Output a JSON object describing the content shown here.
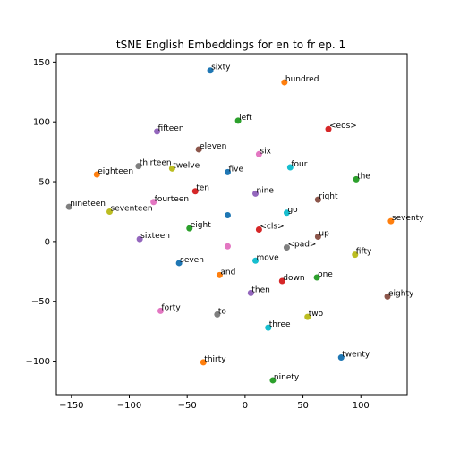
{
  "chart_data": {
    "type": "scatter",
    "title": "tSNE English Embeddings for en to fr ep. 1",
    "xlabel": "",
    "ylabel": "",
    "xlim": [
      -163,
      140
    ],
    "ylim": [
      -128,
      157
    ],
    "xticks": [
      -150,
      -100,
      -50,
      0,
      50,
      100
    ],
    "yticks": [
      -100,
      -50,
      0,
      50,
      100,
      150
    ],
    "grid": false,
    "palette": [
      "#1f77b4",
      "#ff7f0e",
      "#2ca02c",
      "#d62728",
      "#9467bd",
      "#8c564b",
      "#e377c2",
      "#7f7f7f",
      "#bcbd22",
      "#17becf"
    ],
    "points": [
      {
        "label": "sixty",
        "x": -30,
        "y": 143
      },
      {
        "label": "hundred",
        "x": 34,
        "y": 133
      },
      {
        "label": "left",
        "x": -6,
        "y": 101
      },
      {
        "label": "<eos>",
        "x": 72,
        "y": 94
      },
      {
        "label": "fifteen",
        "x": -76,
        "y": 92
      },
      {
        "label": "eleven",
        "x": -40,
        "y": 77
      },
      {
        "label": "six",
        "x": 12,
        "y": 73
      },
      {
        "label": "thirteen",
        "x": -92,
        "y": 63
      },
      {
        "label": "twelve",
        "x": -63,
        "y": 61
      },
      {
        "label": "four",
        "x": 39,
        "y": 62
      },
      {
        "label": "five",
        "x": -15,
        "y": 58
      },
      {
        "label": "eighteen",
        "x": -128,
        "y": 56
      },
      {
        "label": "the",
        "x": 96,
        "y": 52
      },
      {
        "label": "ten",
        "x": -43,
        "y": 42
      },
      {
        "label": "nine",
        "x": 9,
        "y": 40
      },
      {
        "label": "right",
        "x": 63,
        "y": 35
      },
      {
        "label": "fourteen",
        "x": -79,
        "y": 33
      },
      {
        "label": "nineteen",
        "x": -152,
        "y": 29
      },
      {
        "label": "seventeen",
        "x": -117,
        "y": 25
      },
      {
        "label": "go",
        "x": 36,
        "y": 24
      },
      {
        "label": "",
        "x": -15,
        "y": 22
      },
      {
        "label": "seventy",
        "x": 126,
        "y": 17
      },
      {
        "label": "eight",
        "x": -48,
        "y": 11
      },
      {
        "label": "<cls>",
        "x": 12,
        "y": 10
      },
      {
        "label": "sixteen",
        "x": -91,
        "y": 2
      },
      {
        "label": "up",
        "x": 63,
        "y": 4
      },
      {
        "label": "",
        "x": -15,
        "y": -4
      },
      {
        "label": "<pad>",
        "x": 36,
        "y": -5
      },
      {
        "label": "fifty",
        "x": 95,
        "y": -11
      },
      {
        "label": "move",
        "x": 9,
        "y": -16
      },
      {
        "label": "seven",
        "x": -57,
        "y": -18
      },
      {
        "label": "and",
        "x": -22,
        "y": -28
      },
      {
        "label": "one",
        "x": 62,
        "y": -30
      },
      {
        "label": "down",
        "x": 32,
        "y": -33
      },
      {
        "label": "then",
        "x": 5,
        "y": -43
      },
      {
        "label": "eighty",
        "x": 123,
        "y": -46
      },
      {
        "label": "forty",
        "x": -73,
        "y": -58
      },
      {
        "label": "to",
        "x": -24,
        "y": -61
      },
      {
        "label": "two",
        "x": 54,
        "y": -63
      },
      {
        "label": "three",
        "x": 20,
        "y": -72
      },
      {
        "label": "twenty",
        "x": 83,
        "y": -97
      },
      {
        "label": "thirty",
        "x": -36,
        "y": -101
      },
      {
        "label": "ninety",
        "x": 24,
        "y": -116
      }
    ]
  }
}
